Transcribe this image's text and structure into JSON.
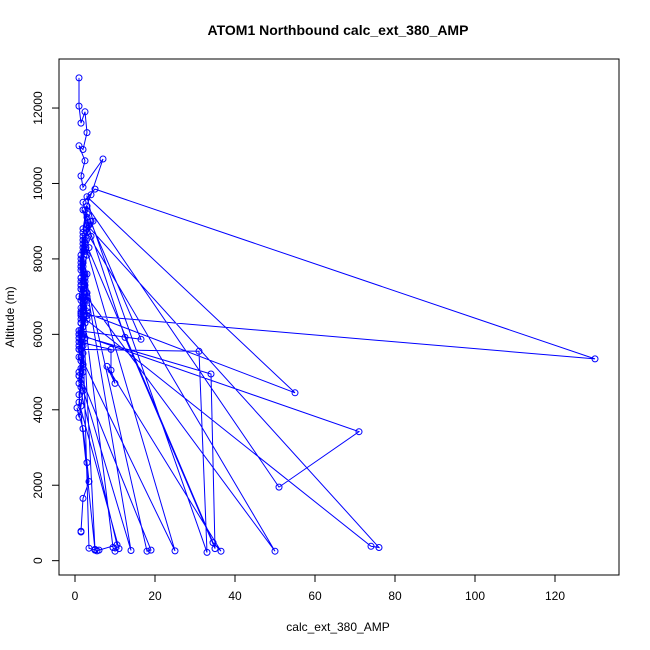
{
  "chart_data": {
    "type": "line",
    "title": "ATOM1 Northbound calc_ext_380_AMP",
    "xlabel": "calc_ext_380_AMP",
    "ylabel": "Altitude (m)",
    "xlim": [
      -4,
      136
    ],
    "ylim": [
      -380,
      13300
    ],
    "xticks": [
      0,
      20,
      40,
      60,
      80,
      100,
      120
    ],
    "yticks": [
      0,
      2000,
      4000,
      6000,
      8000,
      10000,
      12000
    ],
    "grid": false,
    "legend": "none",
    "series_color": "#0000FF",
    "points": [
      [
        1,
        12800
      ],
      [
        1,
        12050
      ],
      [
        1.5,
        11600
      ],
      [
        2.5,
        11900
      ],
      [
        3,
        11350
      ],
      [
        2,
        10900
      ],
      [
        1,
        11000
      ],
      [
        2.5,
        10600
      ],
      [
        1.5,
        10200
      ],
      [
        2,
        9900
      ],
      [
        7,
        10650
      ],
      [
        4,
        9700
      ],
      [
        2.5,
        9300
      ],
      [
        3.5,
        8900
      ],
      [
        2,
        8500
      ],
      [
        1.5,
        8000
      ],
      [
        3,
        7600
      ],
      [
        2,
        7200
      ],
      [
        1.5,
        6900
      ],
      [
        3,
        6500
      ],
      [
        130,
        5350
      ],
      [
        5,
        9850
      ],
      [
        2,
        9500
      ],
      [
        3,
        9100
      ],
      [
        4,
        8600
      ],
      [
        2.5,
        8200
      ],
      [
        1.5,
        7800
      ],
      [
        2,
        7400
      ],
      [
        1,
        7000
      ],
      [
        2,
        6600
      ],
      [
        55,
        4450
      ],
      [
        3,
        9650
      ],
      [
        4.5,
        9000
      ],
      [
        2,
        8400
      ],
      [
        1.5,
        7900
      ],
      [
        2.5,
        7500
      ],
      [
        3,
        7100
      ],
      [
        1.5,
        6700
      ],
      [
        2.5,
        6300
      ],
      [
        1,
        6000
      ],
      [
        71,
        3420
      ],
      [
        51,
        1950
      ],
      [
        3,
        9400
      ],
      [
        2,
        8800
      ],
      [
        3.5,
        8300
      ],
      [
        2,
        7700
      ],
      [
        1.5,
        7300
      ],
      [
        2,
        6950
      ],
      [
        3,
        6400
      ],
      [
        1,
        6100
      ],
      [
        16.5,
        5870
      ],
      [
        3,
        9200
      ],
      [
        2,
        8700
      ],
      [
        1.5,
        8100
      ],
      [
        2.5,
        7600
      ],
      [
        3,
        7000
      ],
      [
        1.5,
        6550
      ],
      [
        2,
        6200
      ],
      [
        2.5,
        5900
      ],
      [
        1,
        5600
      ],
      [
        31,
        5550
      ],
      [
        33,
        220
      ],
      [
        4,
        9000
      ],
      [
        2.5,
        8500
      ],
      [
        2,
        8000
      ],
      [
        1.5,
        7500
      ],
      [
        2,
        7100
      ],
      [
        3,
        6700
      ],
      [
        1.5,
        6300
      ],
      [
        2,
        5950
      ],
      [
        34,
        4950
      ],
      [
        35,
        320
      ],
      [
        12.5,
        5920
      ],
      [
        2,
        9300
      ],
      [
        3,
        8800
      ],
      [
        2,
        8300
      ],
      [
        1.5,
        7800
      ],
      [
        2.5,
        7400
      ],
      [
        3,
        6900
      ],
      [
        1.5,
        6500
      ],
      [
        74,
        380
      ],
      [
        76,
        350
      ],
      [
        3,
        8900
      ],
      [
        2.5,
        8400
      ],
      [
        2,
        7900
      ],
      [
        1.5,
        7400
      ],
      [
        2,
        7000
      ],
      [
        3,
        6600
      ],
      [
        2,
        6200
      ],
      [
        1,
        5800
      ],
      [
        9,
        5600
      ],
      [
        9,
        5050
      ],
      [
        10,
        4700
      ],
      [
        8,
        5150
      ],
      [
        36.5,
        250
      ],
      [
        34.5,
        480
      ],
      [
        2,
        8600
      ],
      [
        3,
        8100
      ],
      [
        2,
        7600
      ],
      [
        1.5,
        7200
      ],
      [
        50,
        250
      ],
      [
        3,
        8700
      ],
      [
        2,
        8200
      ],
      [
        1.5,
        7700
      ],
      [
        2.5,
        7300
      ],
      [
        2,
        6800
      ],
      [
        1.5,
        6400
      ],
      [
        2,
        6000
      ],
      [
        1,
        5700
      ],
      [
        1.5,
        5400
      ],
      [
        25,
        260
      ],
      [
        2.5,
        8400
      ],
      [
        2,
        7900
      ],
      [
        1.5,
        7500
      ],
      [
        2,
        7000
      ],
      [
        3,
        6500
      ],
      [
        1.5,
        6100
      ],
      [
        2,
        5700
      ],
      [
        1.5,
        5300
      ],
      [
        1,
        5000
      ],
      [
        19,
        280
      ],
      [
        18,
        250
      ],
      [
        2,
        7800
      ],
      [
        1.5,
        7300
      ],
      [
        2.5,
        6900
      ],
      [
        2,
        6400
      ],
      [
        1,
        6000
      ],
      [
        1.5,
        5600
      ],
      [
        2,
        5200
      ],
      [
        1,
        4900
      ],
      [
        14,
        270
      ],
      [
        2.5,
        7500
      ],
      [
        2,
        7000
      ],
      [
        1.5,
        6600
      ],
      [
        2,
        6200
      ],
      [
        1.5,
        5800
      ],
      [
        1,
        5400
      ],
      [
        2,
        5000
      ],
      [
        1.5,
        4600
      ],
      [
        1,
        4200
      ],
      [
        11,
        320
      ],
      [
        10,
        250
      ],
      [
        9.5,
        350
      ],
      [
        1.5,
        7200
      ],
      [
        2,
        6700
      ],
      [
        1.5,
        6300
      ],
      [
        1,
        5900
      ],
      [
        2,
        5500
      ],
      [
        1.5,
        5100
      ],
      [
        1,
        4700
      ],
      [
        10.5,
        420
      ],
      [
        6,
        280
      ],
      [
        5.5,
        260
      ],
      [
        5,
        300
      ],
      [
        2,
        6500
      ],
      [
        1.5,
        6000
      ],
      [
        1,
        5600
      ],
      [
        2,
        5200
      ],
      [
        1.5,
        4800
      ],
      [
        1,
        4400
      ],
      [
        5,
        280
      ],
      [
        3.5,
        330
      ],
      [
        2,
        5800
      ],
      [
        1.5,
        5300
      ],
      [
        1,
        4900
      ],
      [
        2,
        4500
      ],
      [
        1.5,
        4100
      ],
      [
        1,
        3800
      ],
      [
        0.5,
        4050
      ],
      [
        2,
        3500
      ],
      [
        3,
        2600
      ],
      [
        3.5,
        2100
      ],
      [
        2,
        1650
      ],
      [
        1.5,
        780
      ],
      [
        1.5,
        760
      ]
    ]
  }
}
